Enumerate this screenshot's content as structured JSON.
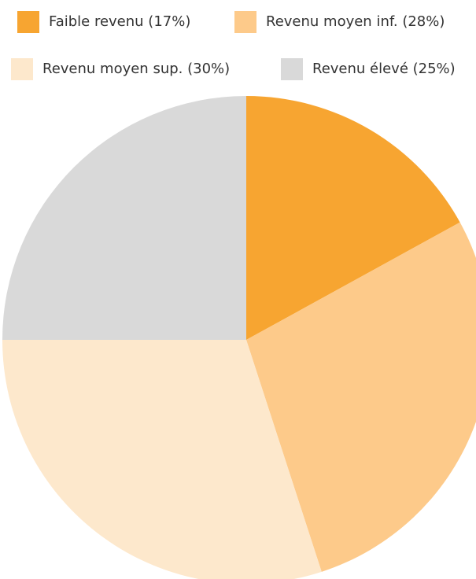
{
  "chart_data": {
    "type": "pie",
    "categories": [
      "Faible revenu (17%)",
      "Revenu moyen inf. (28%)",
      "Revenu moyen sup. (30%)",
      "Revenu élevé (25%)"
    ],
    "values": [
      17,
      28,
      30,
      25
    ],
    "colors": [
      "#f7a531",
      "#fdca8a",
      "#fde8cc",
      "#d9d9d9"
    ],
    "legend": "top"
  }
}
